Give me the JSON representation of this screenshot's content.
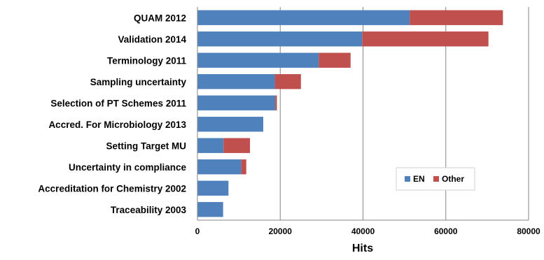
{
  "chart_data": {
    "type": "bar",
    "orientation": "horizontal",
    "stacked": true,
    "title": "",
    "xlabel": "Hits",
    "ylabel": "",
    "xlim": [
      0,
      80000
    ],
    "x_ticks": [
      0,
      20000,
      40000,
      60000,
      80000
    ],
    "grid": "vertical major",
    "legend_position": "lower-right inside plot",
    "categories": [
      "QUAM 2012",
      "Validation 2014",
      "Terminology 2011",
      "Sampling uncertainty",
      "Selection of PT Schemes 2011",
      "Accred. For Microbiology 2013",
      "Setting Target MU",
      "Uncertainty in compliance",
      "Accreditation for Chemistry 2002",
      "Traceability 2003"
    ],
    "series": [
      {
        "name": "EN",
        "color": "#4F81BD",
        "values": [
          51300,
          39800,
          29300,
          18700,
          18800,
          15900,
          6300,
          10600,
          7500,
          6200
        ]
      },
      {
        "name": "Other",
        "color": "#C0504D",
        "values": [
          22500,
          30500,
          7700,
          6300,
          400,
          0,
          6400,
          1200,
          0,
          0
        ]
      }
    ]
  }
}
